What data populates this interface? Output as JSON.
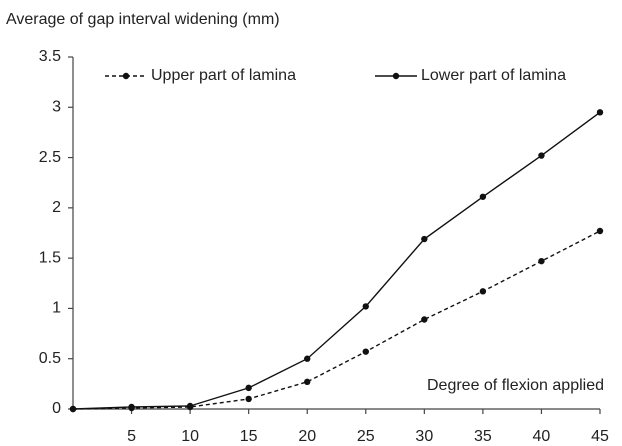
{
  "chart_data": {
    "type": "line",
    "y_label": "Average of gap interval widening (mm)",
    "x_label": "Degree of flexion applied",
    "x": [
      0,
      5,
      10,
      15,
      20,
      25,
      30,
      35,
      40,
      45
    ],
    "series": [
      {
        "name": "Upper part of lamina",
        "color": "#111111",
        "line_style": "dashed",
        "values": [
          0,
          0.01,
          0.02,
          0.1,
          0.27,
          0.57,
          0.89,
          1.17,
          1.47,
          1.77
        ]
      },
      {
        "name": "Lower part of lamina",
        "color": "#111111",
        "line_style": "solid",
        "values": [
          0,
          0.02,
          0.03,
          0.21,
          0.5,
          1.02,
          1.69,
          2.11,
          2.52,
          2.95
        ]
      }
    ],
    "xlim": [
      0,
      45
    ],
    "xticks": [
      5,
      10,
      15,
      20,
      25,
      30,
      35,
      40,
      45
    ],
    "ylim": [
      0,
      3.5
    ],
    "yticks": [
      0,
      0.5,
      1,
      1.5,
      2,
      2.5,
      3,
      3.5
    ],
    "grid": false,
    "legend": "top"
  }
}
